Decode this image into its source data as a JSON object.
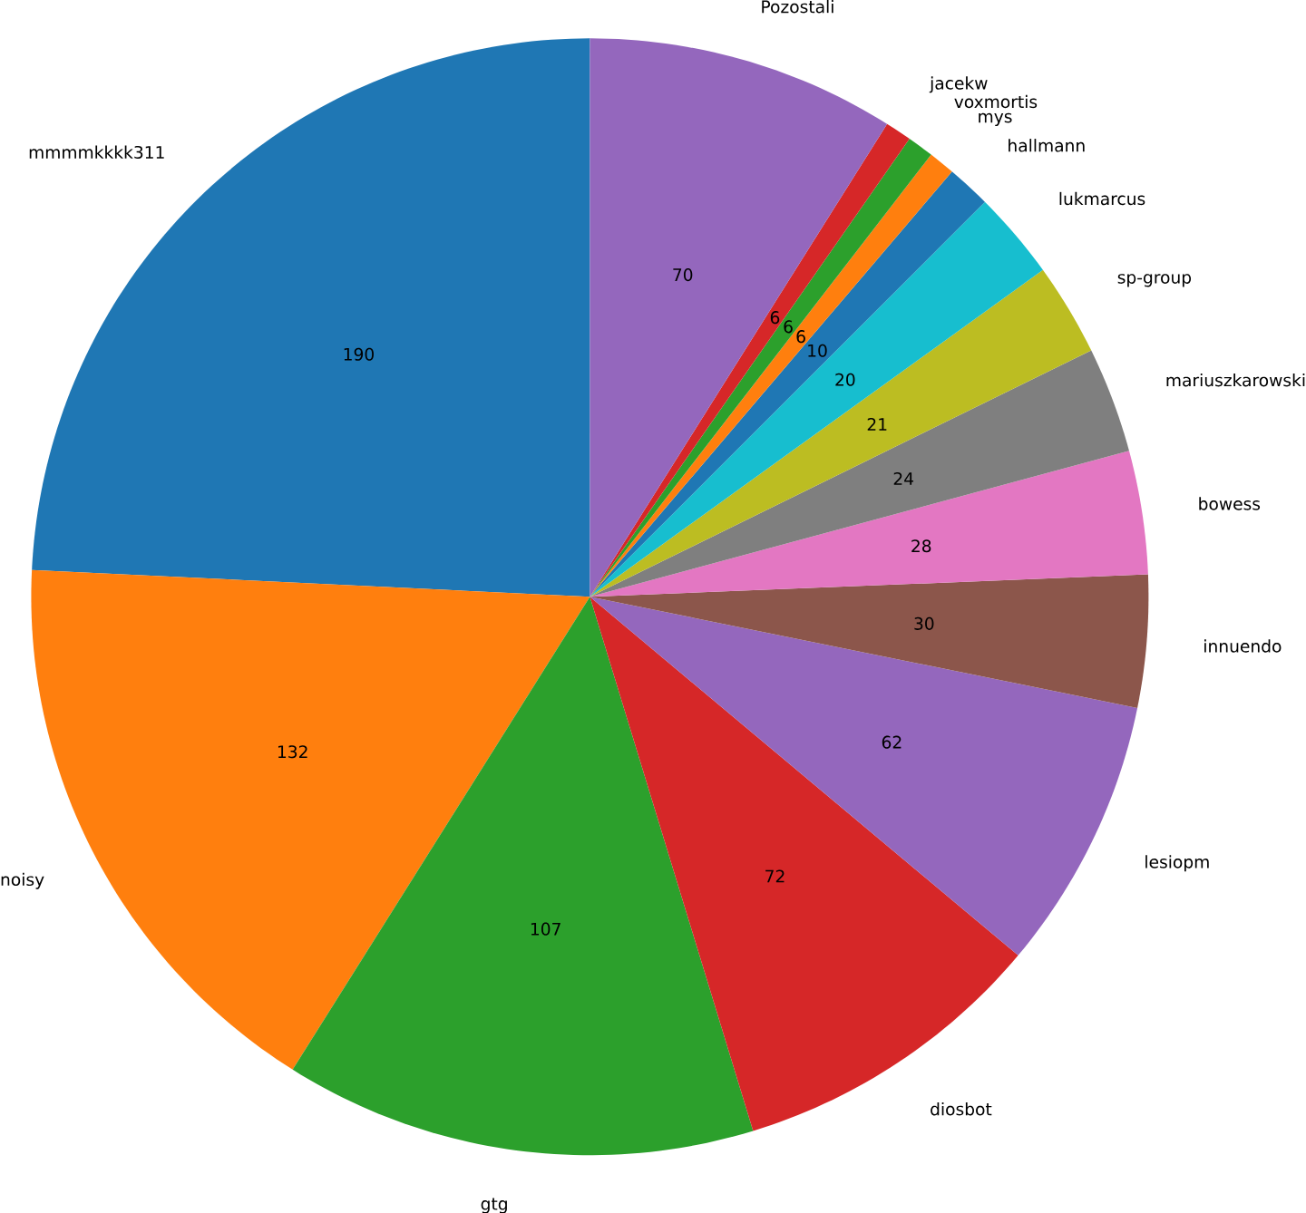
{
  "chart_data": {
    "type": "pie",
    "categories": [
      "mmmmkkkk311",
      "noisy",
      "gtg",
      "diosbot",
      "lesiopm",
      "innuendo",
      "bowess",
      "mariuszkarowski",
      "sp-group",
      "lukmarcus",
      "hallmann",
      "mys",
      "voxmortis",
      "jacekw",
      "Pozostali"
    ],
    "values": [
      190,
      132,
      107,
      72,
      62,
      30,
      28,
      24,
      21,
      20,
      10,
      6,
      6,
      6,
      70
    ],
    "colors": [
      "#1f77b4",
      "#ff7f0e",
      "#2ca02c",
      "#d62728",
      "#9467bd",
      "#8c564b",
      "#e377c2",
      "#7f7f7f",
      "#bcbd22",
      "#17becf",
      "#1f77b4",
      "#ff7f0e",
      "#2ca02c",
      "#d62728",
      "#9467bd"
    ],
    "data_labels": true
  }
}
